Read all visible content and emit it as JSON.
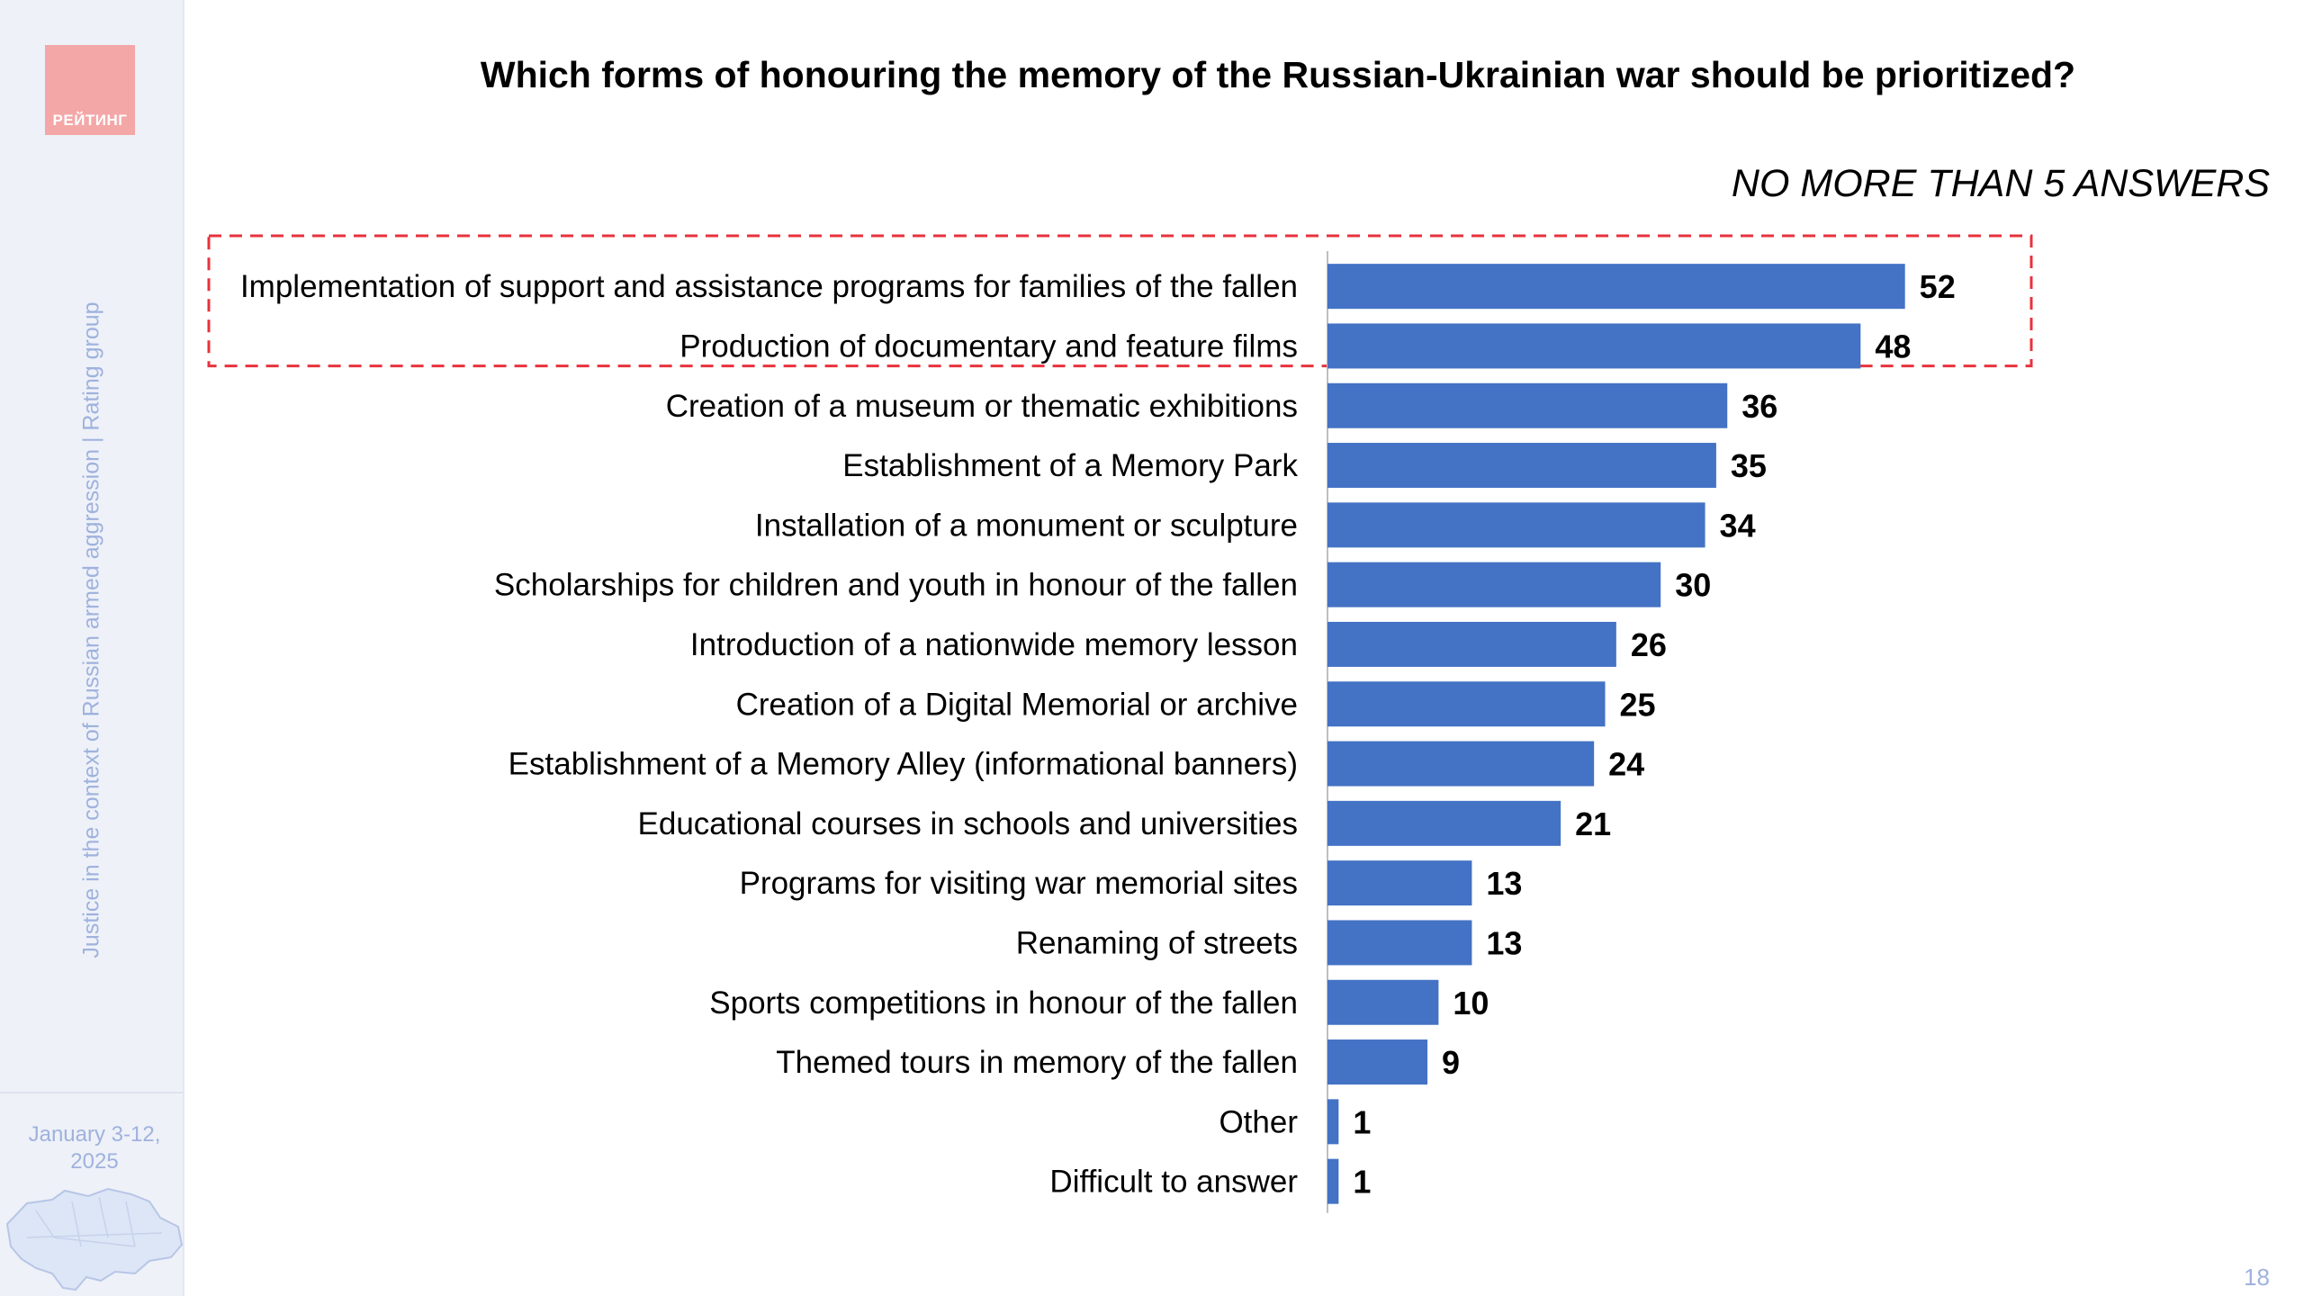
{
  "slide": {
    "logo_text": "РЕЙТИНГ",
    "side_caption": "Justice in the context of Russian armed aggression | Rating group",
    "date": "January 3-12, 2025",
    "page_number": "18"
  },
  "chart_data": {
    "type": "bar",
    "orientation": "horizontal",
    "title": "Which forms of honouring the memory of the Russian-Ukrainian war should be prioritized?",
    "subtitle": "NO MORE THAN 5 ANSWERS",
    "categories": [
      "Implementation of support and assistance programs for families of the fallen",
      "Production of documentary and feature films",
      "Creation of a museum or thematic exhibitions",
      "Establishment of a Memory Park",
      "Installation of a monument or sculpture",
      "Scholarships for children and youth in honour of the fallen",
      "Introduction of a nationwide memory lesson",
      "Creation of a Digital Memorial or archive",
      "Establishment of a Memory Alley (informational banners)",
      "Educational courses in schools and universities",
      "Programs for visiting war memorial sites",
      "Renaming of streets",
      "Sports competitions in honour of the fallen",
      "Themed tours in memory of the fallen",
      "Other",
      "Difficult to answer"
    ],
    "values": [
      52,
      48,
      36,
      35,
      34,
      30,
      26,
      25,
      24,
      21,
      13,
      13,
      10,
      9,
      1,
      1
    ],
    "xlim": [
      0,
      100
    ],
    "grid": false,
    "legend": "none",
    "highlighted_categories": 2,
    "colors": {
      "bar": "#4472c4",
      "highlight_box": "#e8323c"
    }
  }
}
